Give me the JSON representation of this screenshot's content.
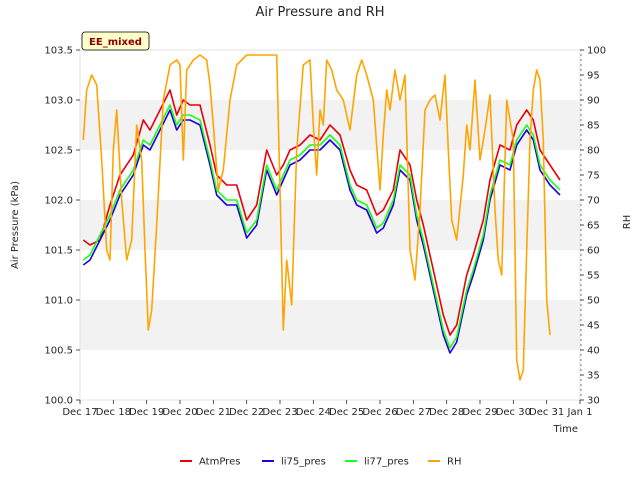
{
  "chart_data": {
    "type": "line",
    "title": "Air Pressure and RH",
    "xlabel": "Time",
    "ylabel": "Air Pressure (kPa)",
    "y2label": "RH",
    "badge": "EE_mixed",
    "x_ticks": [
      "Dec 17",
      "Dec 18",
      "Dec 19",
      "Dec 20",
      "Dec 21",
      "Dec 22",
      "Dec 23",
      "Dec 24",
      "Dec 25",
      "Dec 26",
      "Dec 27",
      "Dec 28",
      "Dec 29",
      "Dec 30",
      "Dec 31",
      "Jan 1"
    ],
    "xlim": [
      0,
      15
    ],
    "ylim": [
      100.0,
      103.5
    ],
    "y_ticks": [
      "100.0",
      "100.5",
      "101.0",
      "101.5",
      "102.0",
      "102.5",
      "103.0",
      "103.5"
    ],
    "y2lim": [
      30,
      100
    ],
    "y2_ticks": [
      "30",
      "35",
      "40",
      "45",
      "50",
      "55",
      "60",
      "65",
      "70",
      "75",
      "80",
      "85",
      "90",
      "95",
      "100"
    ],
    "grid": "horizontal bands",
    "legend_position": "bottom",
    "series": [
      {
        "name": "AtmPres",
        "color": "#e8000b",
        "axis": "left",
        "x": [
          0.1,
          0.3,
          0.6,
          0.9,
          1.2,
          1.6,
          1.9,
          2.1,
          2.4,
          2.7,
          2.9,
          3.1,
          3.3,
          3.6,
          3.9,
          4.1,
          4.4,
          4.7,
          5.0,
          5.3,
          5.6,
          5.9,
          6.1,
          6.3,
          6.6,
          6.9,
          7.2,
          7.5,
          7.8,
          8.1,
          8.3,
          8.6,
          8.9,
          9.1,
          9.4,
          9.6,
          9.9,
          10.1,
          10.3,
          10.6,
          10.9,
          11.1,
          11.3,
          11.6,
          11.8,
          12.1,
          12.3,
          12.6,
          12.9,
          13.1,
          13.4,
          13.6,
          13.8,
          14.1,
          14.4
        ],
        "y": [
          101.6,
          101.55,
          101.6,
          101.95,
          102.25,
          102.45,
          102.8,
          102.7,
          102.9,
          103.1,
          102.85,
          103.0,
          102.95,
          102.95,
          102.55,
          102.25,
          102.15,
          102.15,
          101.8,
          101.95,
          102.5,
          102.25,
          102.35,
          102.5,
          102.55,
          102.65,
          102.6,
          102.75,
          102.65,
          102.3,
          102.15,
          102.1,
          101.85,
          101.9,
          102.1,
          102.5,
          102.35,
          102.0,
          101.75,
          101.3,
          100.85,
          100.65,
          100.75,
          101.25,
          101.45,
          101.8,
          102.2,
          102.55,
          102.5,
          102.75,
          102.9,
          102.8,
          102.5,
          102.35,
          102.2
        ]
      },
      {
        "name": "li75_pres",
        "color": "#1f00e0",
        "axis": "left",
        "x": [
          0.1,
          0.3,
          0.6,
          0.9,
          1.2,
          1.6,
          1.9,
          2.1,
          2.4,
          2.7,
          2.9,
          3.1,
          3.3,
          3.6,
          3.9,
          4.1,
          4.4,
          4.7,
          5.0,
          5.3,
          5.6,
          5.9,
          6.1,
          6.3,
          6.6,
          6.9,
          7.2,
          7.5,
          7.8,
          8.1,
          8.3,
          8.6,
          8.9,
          9.1,
          9.4,
          9.6,
          9.9,
          10.1,
          10.3,
          10.6,
          10.9,
          11.1,
          11.3,
          11.6,
          11.8,
          12.1,
          12.3,
          12.6,
          12.9,
          13.1,
          13.4,
          13.6,
          13.8,
          14.1,
          14.4
        ],
        "y": [
          101.35,
          101.4,
          101.6,
          101.8,
          102.05,
          102.25,
          102.55,
          102.5,
          102.7,
          102.9,
          102.7,
          102.8,
          102.8,
          102.75,
          102.35,
          102.05,
          101.95,
          101.95,
          101.62,
          101.75,
          102.3,
          102.05,
          102.2,
          102.35,
          102.4,
          102.5,
          102.5,
          102.6,
          102.5,
          102.1,
          101.95,
          101.9,
          101.67,
          101.72,
          101.95,
          102.3,
          102.2,
          101.8,
          101.55,
          101.1,
          100.65,
          100.47,
          100.58,
          101.05,
          101.25,
          101.6,
          102.0,
          102.35,
          102.3,
          102.55,
          102.7,
          102.6,
          102.3,
          102.15,
          102.05
        ]
      },
      {
        "name": "li77_pres",
        "color": "#1aff1a",
        "axis": "left",
        "x": [
          0.1,
          0.3,
          0.6,
          0.9,
          1.2,
          1.6,
          1.9,
          2.1,
          2.4,
          2.7,
          2.9,
          3.1,
          3.3,
          3.6,
          3.9,
          4.1,
          4.4,
          4.7,
          5.0,
          5.3,
          5.6,
          5.9,
          6.1,
          6.3,
          6.6,
          6.9,
          7.2,
          7.5,
          7.8,
          8.1,
          8.3,
          8.6,
          8.9,
          9.1,
          9.4,
          9.6,
          9.9,
          10.1,
          10.3,
          10.6,
          10.9,
          11.1,
          11.3,
          11.6,
          11.8,
          12.1,
          12.3,
          12.6,
          12.9,
          13.1,
          13.4,
          13.6,
          13.8,
          14.1,
          14.4
        ],
        "y": [
          101.4,
          101.45,
          101.65,
          101.85,
          102.1,
          102.3,
          102.6,
          102.55,
          102.75,
          102.95,
          102.75,
          102.85,
          102.85,
          102.8,
          102.4,
          102.1,
          102.0,
          102.0,
          101.67,
          101.8,
          102.35,
          102.1,
          102.25,
          102.4,
          102.45,
          102.55,
          102.55,
          102.65,
          102.55,
          102.15,
          102.0,
          101.95,
          101.72,
          101.77,
          102.0,
          102.35,
          102.25,
          101.85,
          101.6,
          101.15,
          100.7,
          100.52,
          100.63,
          101.1,
          101.3,
          101.65,
          102.05,
          102.4,
          102.35,
          102.6,
          102.75,
          102.65,
          102.35,
          102.2,
          102.1
        ]
      },
      {
        "name": "RH",
        "color": "#ffa500",
        "axis": "right",
        "x": [
          0.1,
          0.2,
          0.35,
          0.5,
          0.65,
          0.8,
          0.9,
          1.0,
          1.1,
          1.25,
          1.4,
          1.55,
          1.7,
          1.85,
          1.95,
          2.05,
          2.15,
          2.3,
          2.5,
          2.7,
          2.9,
          3.0,
          3.1,
          3.2,
          3.4,
          3.6,
          3.8,
          3.9,
          4.0,
          4.15,
          4.3,
          4.5,
          4.7,
          5.0,
          5.5,
          5.9,
          6.0,
          6.1,
          6.2,
          6.35,
          6.5,
          6.7,
          6.9,
          7.0,
          7.1,
          7.2,
          7.3,
          7.4,
          7.55,
          7.7,
          7.9,
          8.1,
          8.3,
          8.45,
          8.6,
          8.8,
          9.0,
          9.1,
          9.2,
          9.3,
          9.45,
          9.6,
          9.75,
          9.9,
          10.05,
          10.2,
          10.35,
          10.5,
          10.65,
          10.8,
          10.95,
          11.05,
          11.15,
          11.3,
          11.5,
          11.6,
          11.7,
          11.85,
          12.0,
          12.15,
          12.3,
          12.45,
          12.55,
          12.65,
          12.8,
          13.0,
          13.1,
          13.2,
          13.3,
          13.4,
          13.5,
          13.6,
          13.7,
          13.8,
          13.9,
          14.0,
          14.1
        ],
        "y": [
          82,
          92,
          95,
          93,
          78,
          60,
          58,
          80,
          88,
          70,
          58,
          62,
          85,
          78,
          60,
          44,
          48,
          65,
          90,
          97,
          98,
          97,
          78,
          96,
          98,
          99,
          98,
          93,
          85,
          72,
          76,
          90,
          97,
          99,
          99,
          99,
          72,
          44,
          58,
          49,
          80,
          97,
          98,
          85,
          75,
          88,
          85,
          98,
          96,
          92,
          90,
          84,
          95,
          98,
          95,
          90,
          72,
          83,
          92,
          88,
          96,
          90,
          95,
          60,
          54,
          68,
          88,
          90,
          91,
          86,
          95,
          80,
          66,
          62,
          75,
          85,
          80,
          94,
          78,
          84,
          91,
          68,
          58,
          55,
          90,
          82,
          38,
          34,
          36,
          60,
          82,
          92,
          96,
          94,
          82,
          50,
          43
        ]
      }
    ]
  }
}
